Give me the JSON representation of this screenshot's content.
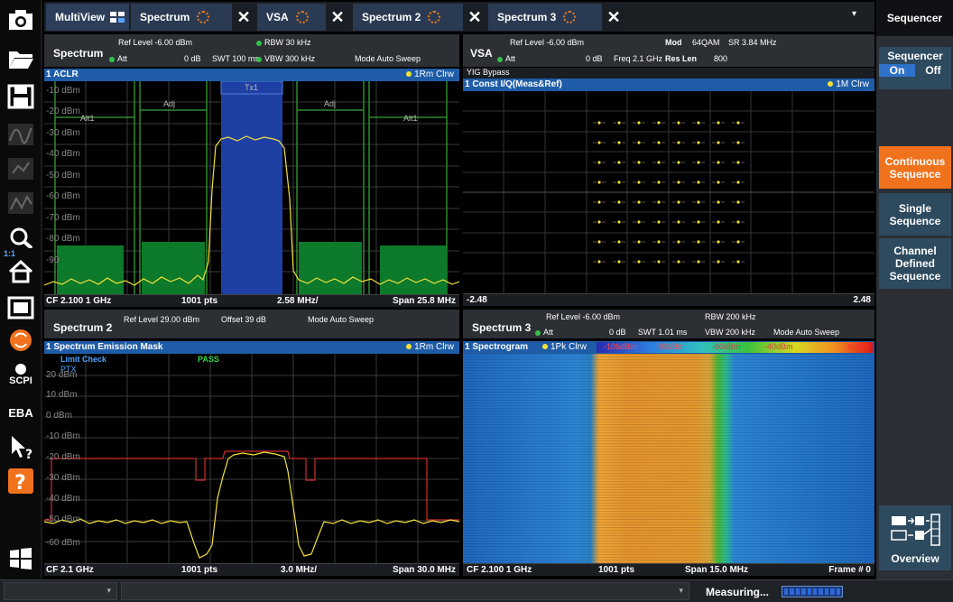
{
  "tabs": [
    {
      "label": "MultiView"
    },
    {
      "label": "Spectrum"
    },
    {
      "label": "VSA"
    },
    {
      "label": "Spectrum 2"
    },
    {
      "label": "Spectrum 3"
    }
  ],
  "left_toolbar": {
    "scpi": "SCPI",
    "eba": "EBA",
    "zoom_ratio": "1:1"
  },
  "right_panel": {
    "title": "Sequencer",
    "sequencer_label": "Sequencer",
    "on": "On",
    "off": "Off",
    "continuous": "Continuous Sequence",
    "single": "Single Sequence",
    "channel_defined": "Channel Defined Sequence",
    "overview": "Overview"
  },
  "spectrum1": {
    "name": "Spectrum",
    "ref_level": "Ref Level  -6.00 dBm",
    "att": "Att",
    "att_val": "0 dB",
    "swt": "SWT  100 ms",
    "rbw": "RBW   30 kHz",
    "vbw": "VBW  300 kHz",
    "mode": "Mode  Auto Sweep",
    "plot_title": "1 ACLR",
    "trace": "1Rm Clrw",
    "y_labels": [
      "-10 dBm",
      "-20 dBm",
      "-30 dBm",
      "-40 dBm",
      "-50 dBm",
      "-60 dBm",
      "-70 dBm",
      "-80 dBm",
      "-90"
    ],
    "channel_labels": [
      "Alt1",
      "Adj",
      "Tx1",
      "Adj",
      "Alt1"
    ],
    "cf": "CF 2.100 1 GHz",
    "pts": "1001 pts",
    "div": "2.58 MHz/",
    "span": "Span 25.8 MHz"
  },
  "vsa": {
    "name": "VSA",
    "ref_level": "Ref Level  -6.00 dBm",
    "att": "Att",
    "att_val": "0 dB",
    "freq": "Freq  2.1 GHz",
    "mod": "Mod",
    "mod_val": "64QAM",
    "sr": "SR  3.84 MHz",
    "res_len": "Res Len",
    "res_len_val": "800",
    "yig": "YIG Bypass",
    "plot_title": "1 Const I/Q(Meas&Ref)",
    "trace": "1M Clrw",
    "x_min": "-2.48",
    "x_max": "2.48"
  },
  "spectrum2": {
    "name": "Spectrum 2",
    "ref_level": "Ref Level  29.00 dBm",
    "offset": "Offset  39 dB",
    "mode": "Mode  Auto Sweep",
    "plot_title": "1 Spectrum Emission Mask",
    "trace": "1Rm Clrw",
    "limit_check": "Limit Check",
    "pass": "PASS",
    "ptx": "PTX",
    "y_labels": [
      "20 dBm",
      "10 dBm",
      "0 dBm",
      "-10 dBm",
      "-20 dBm",
      "-30 dBm",
      "-40 dBm",
      "-50 dBm",
      "-60 dBm"
    ],
    "cf": "CF 2.1 GHz",
    "pts": "1001 pts",
    "div": "3.0 MHz/",
    "span": "Span 30.0 MHz"
  },
  "spectrum3": {
    "name": "Spectrum 3",
    "ref_level": "Ref Level  -6.00 dBm",
    "att": "Att",
    "att_val": "0 dB",
    "swt": "SWT  1.01 ms",
    "rbw": "RBW  200 kHz",
    "vbw": "VBW  200 kHz",
    "mode": "Mode  Auto Sweep",
    "plot_title": "1 Spectrogram",
    "trace": "1Pk Clrw",
    "scale": [
      "-106dBm",
      "-80dBm",
      "-60dBm",
      "-40dBm",
      "-6dBm"
    ],
    "cf": "CF 2.100 1 GHz",
    "pts": "1001 pts",
    "span": "Span 15.0 MHz",
    "frame": "Frame # 0"
  },
  "status": {
    "measuring": "Measuring..."
  },
  "colors": {
    "accent_orange": "#f0721d",
    "trace_yellow": "#f4e23a",
    "limit_red": "#d22b2b",
    "grid_green": "#1f8a32",
    "title_blue": "#1f5ca8"
  }
}
